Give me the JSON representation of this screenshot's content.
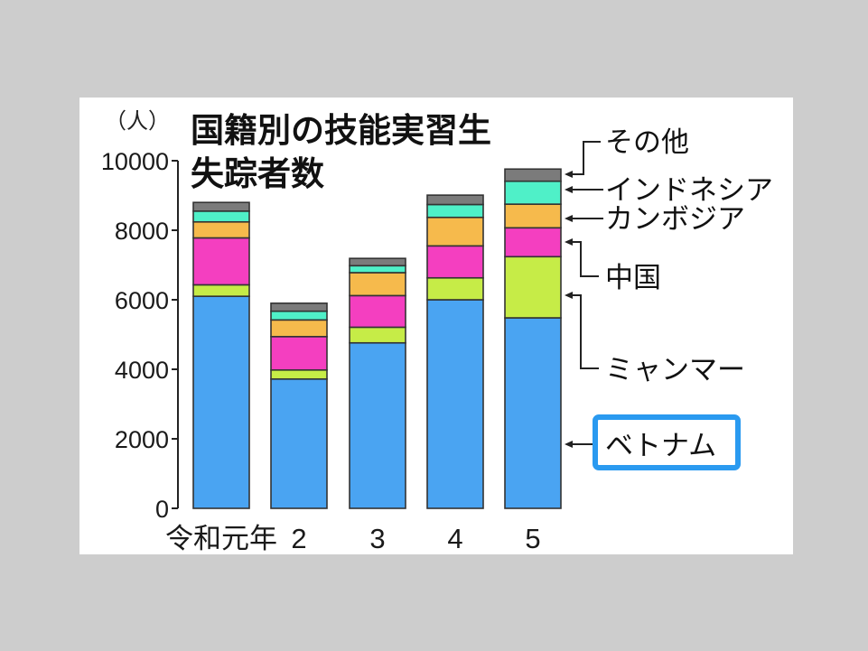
{
  "chart_data": {
    "type": "bar",
    "stacked": true,
    "title": "国籍別の技能実習生失踪者数",
    "title_lines": [
      "国籍別の技能実習生",
      "失踪者数"
    ],
    "ylabel": "（人）",
    "xlabel": "",
    "ylim": [
      0,
      10000
    ],
    "yticks": [
      0,
      2000,
      4000,
      6000,
      8000,
      10000
    ],
    "categories": [
      "令和元年",
      "2",
      "3",
      "4",
      "5"
    ],
    "grid": false,
    "legend_placement": "right (labels with arrows)",
    "highlighted_series": "ベトナム",
    "series": [
      {
        "name": "ベトナム",
        "color": "#4aa4f2",
        "values": [
          6100,
          3720,
          4760,
          6000,
          5480
        ]
      },
      {
        "name": "ミャンマー",
        "color": "#c6ec47",
        "values": [
          330,
          260,
          450,
          630,
          1760
        ]
      },
      {
        "name": "中国",
        "color": "#f43fc0",
        "values": [
          1350,
          960,
          910,
          920,
          830
        ]
      },
      {
        "name": "カンボジア",
        "color": "#f6ba4c",
        "values": [
          460,
          480,
          660,
          820,
          680
        ]
      },
      {
        "name": "インドネシア",
        "color": "#4ff0c8",
        "values": [
          310,
          250,
          200,
          370,
          660
        ]
      },
      {
        "name": "その他",
        "color": "#7b7b7b",
        "values": [
          250,
          230,
          210,
          270,
          350
        ]
      }
    ]
  }
}
